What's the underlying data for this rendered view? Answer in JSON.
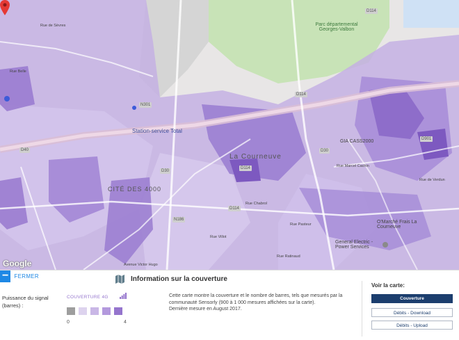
{
  "map": {
    "labels": {
      "parc": "Parc départemental Georges-Valbon",
      "station": "Station-service Total",
      "town": "La Courneuve",
      "cite": "CITÉ DES 4000",
      "gia": "GIA CASS2000",
      "omarche": "O'Marché Frais La Courneuve",
      "general_electric": "General Electric - Power Services",
      "rue_verdun": "Rue de Verdun",
      "rue_mitterrand": "Rue Marcel Cachin",
      "rue_chabrol": "Rue Chabrol",
      "rue_pasteur": "Rue Pasteur",
      "rue_villot": "Rue Villot",
      "rue_ratinaud": "Rue Ratinaud",
      "rue_sevres": "Rue de Sèvres",
      "rue_belle": "Rue Belle",
      "av_victor": "Avenue Victor Hugo"
    },
    "road_badges": [
      "D114",
      "N301",
      "D114",
      "D30",
      "D114",
      "D40",
      "D30",
      "N186",
      "D114",
      "D901"
    ],
    "attribution": "Google"
  },
  "panel": {
    "close_label": "FERMER",
    "info_title": "Information sur la couverture",
    "legend_label": "Puissance du signal (barres) :",
    "legend_title": "COUVERTURE 4G",
    "scale_min": "0",
    "scale_max": "4",
    "swatch_colors": [
      "#9e9e9e",
      "#ddd3ee",
      "#c9b7e6",
      "#b399dd",
      "#9575cd"
    ],
    "description_line1": "Cette carte montre la couverture et le nombre de barres, tels que mesurés par la communauté Sensorly (900 à 1 000 mesures affichées sur la carte).",
    "description_line2": "Dernière mesure en August 2017.",
    "view_title": "Voir la carte:",
    "btn_coverage": "Couverture",
    "btn_download": "Débits - Download",
    "btn_upload": "Débits - Upload"
  },
  "colors": {
    "accent": "#1e88e5",
    "navy": "#1c3e6e",
    "coverage": "#9575cd"
  }
}
